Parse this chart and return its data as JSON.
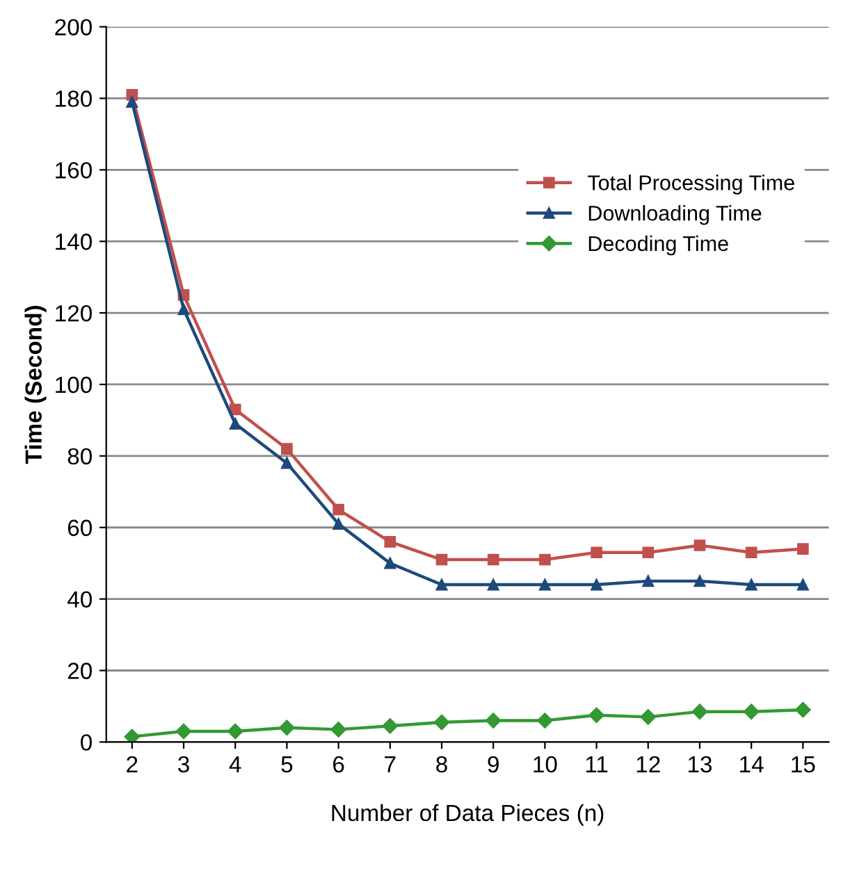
{
  "chart_data": {
    "type": "line",
    "xlabel": "Number of Data Pieces (n)",
    "ylabel": "Time (Second)",
    "categories": [
      "2",
      "3",
      "4",
      "5",
      "6",
      "7",
      "8",
      "9",
      "10",
      "11",
      "12",
      "13",
      "14",
      "15"
    ],
    "series": [
      {
        "name": "Total Processing Time",
        "color": "#c0504d",
        "marker": "square",
        "values": [
          181,
          125,
          93,
          82,
          65,
          56,
          51,
          51,
          51,
          53,
          53,
          55,
          53,
          54
        ]
      },
      {
        "name": "Downloading Time",
        "color": "#1f497d",
        "marker": "triangle",
        "values": [
          179,
          121,
          89,
          78,
          61,
          50,
          44,
          44,
          44,
          44,
          45,
          45,
          44,
          44
        ]
      },
      {
        "name": "Decoding Time",
        "color": "#339933",
        "marker": "diamond",
        "values": [
          1.5,
          3,
          3,
          4,
          3.5,
          4.5,
          5.5,
          6,
          6,
          7.5,
          7,
          8.5,
          8.5,
          9
        ]
      }
    ],
    "ylim": [
      0,
      200
    ],
    "yticks": [
      0,
      20,
      40,
      60,
      80,
      100,
      120,
      140,
      160,
      180,
      200
    ],
    "grid": "y",
    "legend": "upper right"
  }
}
